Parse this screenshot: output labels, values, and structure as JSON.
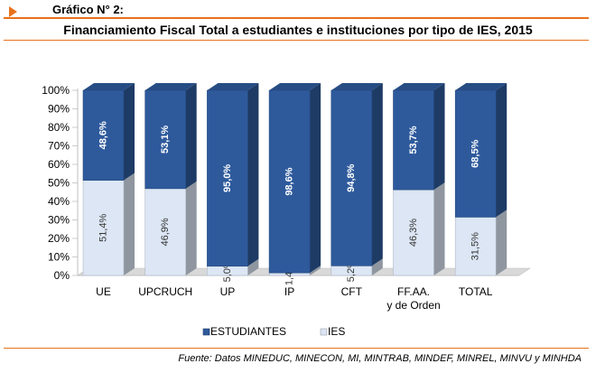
{
  "header": {
    "label": "Gráfico N° 2:",
    "title": "Financiamiento Fiscal Total a estudiantes e instituciones por tipo de IES, 2015"
  },
  "source": "Fuente: Datos MINEDUC, MINECON, MI, MINTRAB, MINDEF, MINREL, MINVU y MINHDA",
  "colors": {
    "accent": "#e8711c",
    "estudiantes": "#2e5a9c",
    "ies": "#dce6f4"
  },
  "chart_data": {
    "type": "bar",
    "stacked": true,
    "percent": true,
    "categories": [
      [
        "UE"
      ],
      [
        "UPCRUCH"
      ],
      [
        "UP"
      ],
      [
        "IP"
      ],
      [
        "CFT"
      ],
      [
        "FF.AA.",
        "y de Orden"
      ],
      [
        "TOTAL"
      ]
    ],
    "series": [
      {
        "name": "IES",
        "color": "#dce6f4",
        "values": [
          51.4,
          46.9,
          5.0,
          1.4,
          5.2,
          46.3,
          31.5
        ],
        "labels": [
          "51,4%",
          "46,9%",
          "5,0%",
          "1,4%",
          "5,2%",
          "46,3%",
          "31,5%"
        ]
      },
      {
        "name": "ESTUDIANTES",
        "color": "#2e5a9c",
        "values": [
          48.6,
          53.1,
          95.0,
          98.6,
          94.8,
          53.7,
          68.5
        ],
        "labels": [
          "48,6%",
          "53,1%",
          "95,0%",
          "98,6%",
          "94,8%",
          "53,7%",
          "68,5%"
        ]
      }
    ],
    "legend_order": [
      "ESTUDIANTES",
      "IES"
    ],
    "yticks": [
      "0%",
      "10%",
      "20%",
      "30%",
      "40%",
      "50%",
      "60%",
      "70%",
      "80%",
      "90%",
      "100%"
    ],
    "ylim": [
      0,
      100
    ],
    "legend": "bottom",
    "grid": false
  }
}
